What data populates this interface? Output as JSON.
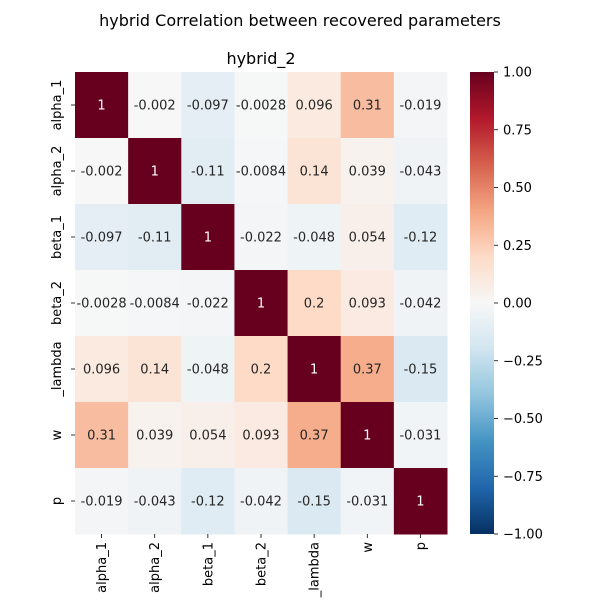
{
  "chart_data": {
    "type": "heatmap",
    "suptitle": "hybrid Correlation between recovered parameters",
    "title": "hybrid_2",
    "xlabel": "",
    "ylabel": "",
    "row_labels": [
      "alpha_1",
      "alpha_2",
      "beta_1",
      "beta_2",
      "_lambda",
      "w",
      "p"
    ],
    "col_labels": [
      "alpha_1",
      "alpha_2",
      "beta_1",
      "beta_2",
      "_lambda",
      "w",
      "p"
    ],
    "values": [
      [
        1,
        -0.002,
        -0.097,
        -0.0028,
        0.096,
        0.31,
        -0.019
      ],
      [
        -0.002,
        1,
        -0.11,
        -0.0084,
        0.14,
        0.039,
        -0.043
      ],
      [
        -0.097,
        -0.11,
        1,
        -0.022,
        -0.048,
        0.054,
        -0.12
      ],
      [
        -0.0028,
        -0.0084,
        -0.022,
        1,
        0.2,
        0.093,
        -0.042
      ],
      [
        0.096,
        0.14,
        -0.048,
        0.2,
        1,
        0.37,
        -0.15
      ],
      [
        0.31,
        0.039,
        0.054,
        0.093,
        0.37,
        1,
        -0.031
      ],
      [
        -0.019,
        -0.043,
        -0.12,
        -0.042,
        -0.15,
        -0.031,
        1
      ]
    ],
    "vmin": -1,
    "vmax": 1,
    "colormap": "RdBu_r",
    "colorbar_ticks": [
      "1.00",
      "0.75",
      "0.50",
      "0.25",
      "0.00",
      "−0.25",
      "−0.50",
      "−0.75",
      "−1.00"
    ],
    "colorbar_tick_values": [
      1,
      0.75,
      0.5,
      0.25,
      0,
      -0.25,
      -0.5,
      -0.75,
      -1
    ],
    "annotations": true,
    "grid": false
  }
}
